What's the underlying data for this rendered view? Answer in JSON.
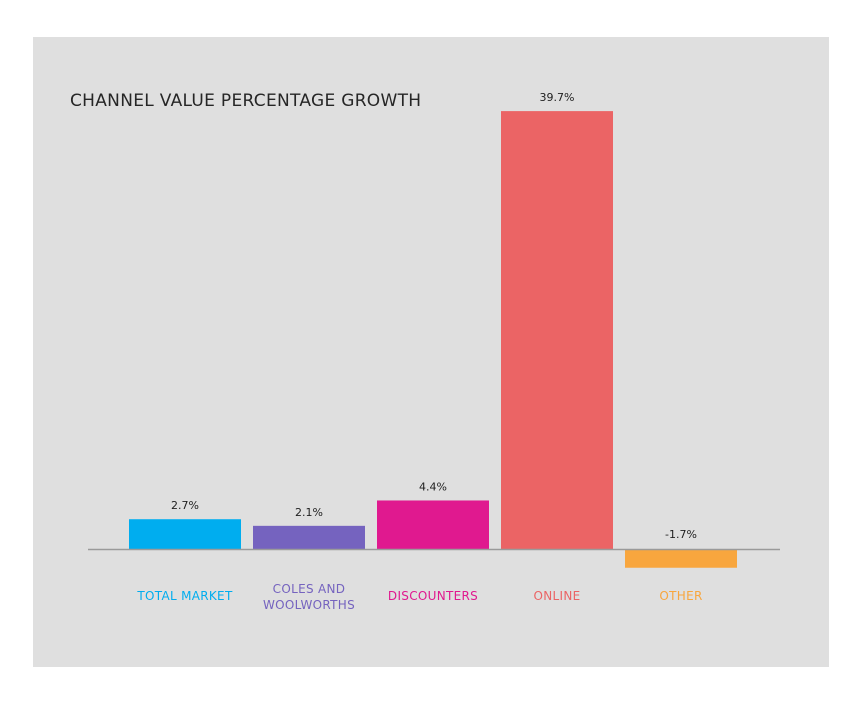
{
  "chart_data": {
    "type": "bar",
    "title": "CHANNEL VALUE PERCENTAGE GROWTH",
    "categories": [
      "TOTAL MARKET",
      "COLES AND WOOLWORTHS",
      "DISCOUNTERS",
      "ONLINE",
      "OTHER"
    ],
    "category_lines": [
      [
        "TOTAL MARKET"
      ],
      [
        "COLES AND",
        "WOOLWORTHS"
      ],
      [
        "DISCOUNTERS"
      ],
      [
        "ONLINE"
      ],
      [
        "OTHER"
      ]
    ],
    "values": [
      2.7,
      2.1,
      4.4,
      39.7,
      -1.7
    ],
    "value_labels": [
      "2.7%",
      "2.1%",
      "4.4%",
      "39.7%",
      "-1.7%"
    ],
    "colors": [
      "#00adef",
      "#7563bf",
      "#e0198f",
      "#eb6465",
      "#f8a63e"
    ],
    "ylim": [
      -1.7,
      39.7
    ],
    "grid": false,
    "legend": "none",
    "xlabel": "",
    "ylabel": ""
  }
}
